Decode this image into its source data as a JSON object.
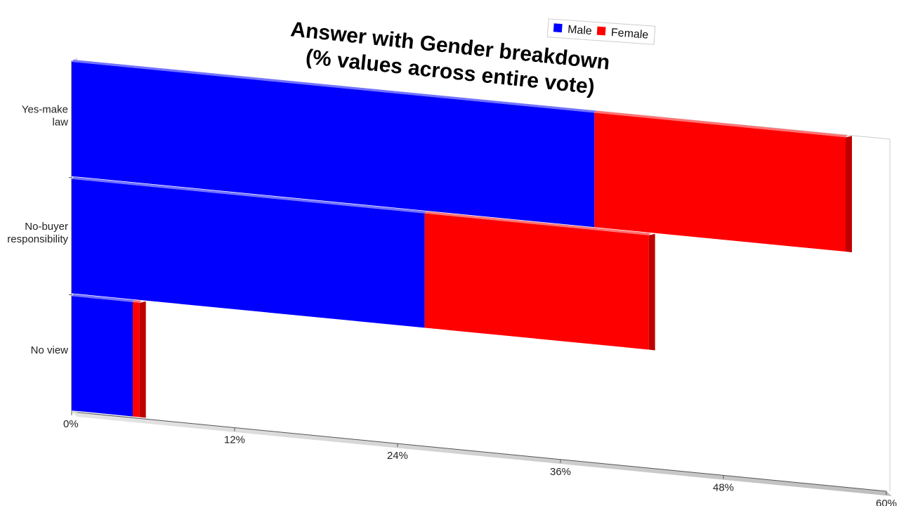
{
  "chart_data": {
    "type": "bar",
    "orientation": "horizontal",
    "stacked": true,
    "style": "3d-perspective",
    "title": "Answer with Gender breakdown\n(% values across entire vote)",
    "title_lines": [
      "Answer with Gender breakdown",
      "(% values across entire vote)"
    ],
    "categories": [
      "Yes-make law",
      "No-buyer responsibility",
      "No view"
    ],
    "category_lines": [
      [
        "Yes-make",
        "law"
      ],
      [
        "No-buyer",
        "responsibility"
      ],
      [
        "No view"
      ]
    ],
    "series": [
      {
        "name": "Male",
        "color": "#0000ff",
        "values": [
          38.5,
          26.0,
          4.5
        ]
      },
      {
        "name": "Female",
        "color": "#ff0000",
        "values": [
          18.5,
          16.5,
          0.5
        ]
      }
    ],
    "xlim": [
      0,
      60
    ],
    "ticks": [
      0,
      12,
      24,
      36,
      48,
      60
    ],
    "tick_labels": [
      "0%",
      "12%",
      "24%",
      "36%",
      "48%",
      "60%"
    ],
    "legend_position": "top-right",
    "grid": false
  }
}
